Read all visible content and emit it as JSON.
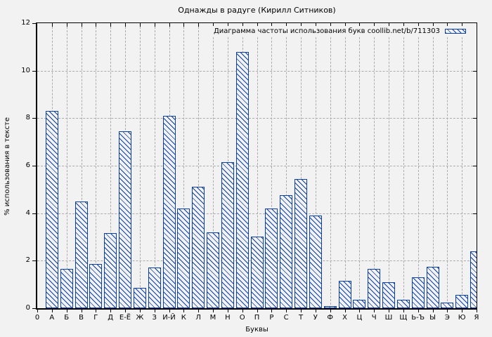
{
  "title": "Однажды в радуге (Кирилл Ситников)",
  "legend": {
    "label": "Диаграмма частоты использования букв coollib.net/b/711303"
  },
  "colors": {
    "bar": "#0c3fa5",
    "grid": "#ababab",
    "axis": "#000000",
    "background": "#f2f2f2"
  },
  "chart_data": {
    "type": "bar",
    "title": "Однажды в радуге (Кирилл Ситников)",
    "xlabel": "Буквы",
    "ylabel": "% использования в тексте",
    "legend_label": "Диаграмма частоты использования букв coollib.net/b/711303",
    "legend_position": "top-right",
    "grid": true,
    "hatch": "diagonal",
    "origin_tick_label": "0",
    "ylim": [
      0,
      12
    ],
    "yticks": [
      0,
      2,
      4,
      6,
      8,
      10,
      12
    ],
    "categories": [
      "А",
      "Б",
      "В",
      "Г",
      "Д",
      "Е-Ё",
      "Ж",
      "З",
      "И-Й",
      "К",
      "Л",
      "М",
      "Н",
      "О",
      "П",
      "Р",
      "С",
      "Т",
      "У",
      "Ф",
      "Х",
      "Ц",
      "Ч",
      "Ш",
      "Щ",
      "Ь-Ъ",
      "Ы",
      "Э",
      "Ю",
      "Я"
    ],
    "values": [
      8.3,
      1.65,
      4.5,
      1.85,
      3.15,
      7.45,
      0.85,
      1.7,
      8.1,
      4.2,
      5.1,
      3.2,
      6.15,
      10.8,
      3.0,
      4.2,
      4.75,
      5.45,
      3.9,
      0.1,
      1.15,
      0.35,
      1.65,
      1.1,
      0.35,
      1.3,
      1.75,
      0.25,
      0.55,
      2.4
    ]
  }
}
